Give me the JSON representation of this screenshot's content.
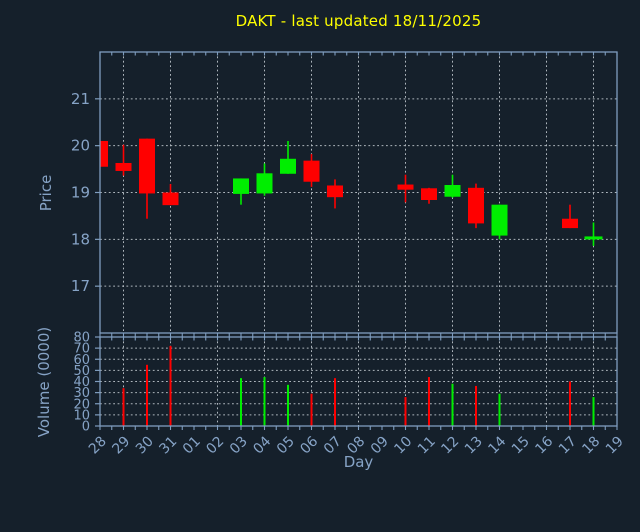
{
  "colors": {
    "background": "#15202b",
    "axis": "#7f9dbf",
    "label": "#86a3c6",
    "grid": "#aeb6bd",
    "title": "#ffff00",
    "up": "#00ee00",
    "down": "#ff0000"
  },
  "chart_data": {
    "type": "candlestick",
    "title": "DAKT - last updated 18/11/2025",
    "xlabel": "Day",
    "x_categories": [
      "28",
      "29",
      "30",
      "31",
      "01",
      "02",
      "03",
      "04",
      "05",
      "06",
      "07",
      "08",
      "09",
      "10",
      "11",
      "12",
      "13",
      "14",
      "15",
      "16",
      "17",
      "18",
      "19"
    ],
    "price_panel": {
      "ylabel": "Price",
      "ylim": [
        16,
        22
      ],
      "yticks": [
        17,
        18,
        19,
        20,
        21
      ],
      "grid": true
    },
    "volume_panel": {
      "ylabel": "Volume (0000)",
      "ylim": [
        0,
        80
      ],
      "yticks": [
        0,
        10,
        20,
        30,
        40,
        50,
        60,
        70,
        80
      ],
      "grid": true
    },
    "candles": [
      {
        "day": "28",
        "open": 20.1,
        "high": 20.1,
        "low": 19.55,
        "close": 19.55,
        "volume": null
      },
      {
        "day": "29",
        "open": 19.63,
        "high": 20.02,
        "low": 19.36,
        "close": 19.46,
        "volume": 34
      },
      {
        "day": "30",
        "open": 20.15,
        "high": 20.15,
        "low": 18.44,
        "close": 18.98,
        "volume": 55
      },
      {
        "day": "31",
        "open": 19.0,
        "high": 19.18,
        "low": 18.73,
        "close": 18.73,
        "volume": 72
      },
      {
        "day": "03",
        "open": 18.97,
        "high": 19.3,
        "low": 18.74,
        "close": 19.3,
        "volume": 43
      },
      {
        "day": "04",
        "open": 18.98,
        "high": 19.62,
        "low": 18.93,
        "close": 19.41,
        "volume": 44
      },
      {
        "day": "05",
        "open": 19.4,
        "high": 20.1,
        "low": 19.4,
        "close": 19.72,
        "volume": 37
      },
      {
        "day": "06",
        "open": 19.68,
        "high": 19.82,
        "low": 19.12,
        "close": 19.23,
        "volume": 29
      },
      {
        "day": "07",
        "open": 19.15,
        "high": 19.28,
        "low": 18.66,
        "close": 18.9,
        "volume": 43
      },
      {
        "day": "10",
        "open": 19.17,
        "high": 19.38,
        "low": 18.79,
        "close": 19.06,
        "volume": 26
      },
      {
        "day": "11",
        "open": 19.09,
        "high": 19.1,
        "low": 18.76,
        "close": 18.84,
        "volume": 44
      },
      {
        "day": "12",
        "open": 18.91,
        "high": 19.38,
        "low": 18.89,
        "close": 19.16,
        "volume": 38
      },
      {
        "day": "13",
        "open": 19.1,
        "high": 19.19,
        "low": 18.24,
        "close": 18.34,
        "volume": 36
      },
      {
        "day": "14",
        "open": 18.08,
        "high": 18.74,
        "low": 18.0,
        "close": 18.74,
        "volume": 29
      },
      {
        "day": "17",
        "open": 18.44,
        "high": 18.74,
        "low": 18.24,
        "close": 18.24,
        "volume": 40
      },
      {
        "day": "18",
        "open": 18.03,
        "high": 18.36,
        "low": 17.86,
        "close": 18.03,
        "volume": 26
      }
    ]
  }
}
